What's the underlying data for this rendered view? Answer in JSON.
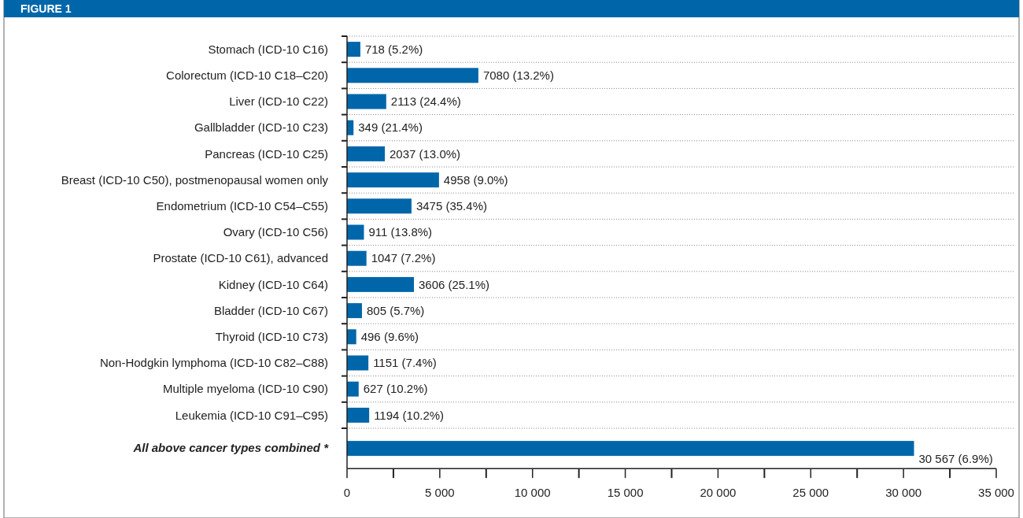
{
  "chart_data": {
    "type": "bar",
    "orientation": "horizontal",
    "title": "FIGURE 1",
    "categories": [
      "Stomach (ICD-10 C16)",
      "Colorectum (ICD-10 C18–C20)",
      "Liver (ICD-10 C22)",
      "Gallbladder (ICD-10 C23)",
      "Pancreas (ICD-10 C25)",
      "Breast (ICD-10 C50), postmenopausal women only",
      "Endometrium (ICD-10 C54–C55)",
      "Ovary (ICD-10 C56)",
      "Prostate (ICD-10 C61), advanced",
      "Kidney (ICD-10 C64)",
      "Bladder (ICD-10 C67)",
      "Thyroid (ICD-10 C73)",
      "Non-Hodgkin lymphoma (ICD-10 C82–C88)",
      "Multiple myeloma (ICD-10 C90)",
      "Leukemia (ICD-10 C91–C95)",
      "All above cancer types combined *"
    ],
    "values": [
      718,
      7080,
      2113,
      349,
      2037,
      4958,
      3475,
      911,
      1047,
      3606,
      805,
      496,
      1151,
      627,
      1194,
      30567
    ],
    "value_labels": [
      "718 (5.2%)",
      "7080 (13.2%)",
      "2113 (24.4%)",
      "349 (21.4%)",
      "2037 (13.0%)",
      "4958 (9.0%)",
      "3475 (35.4%)",
      "911 (13.8%)",
      "1047 (7.2%)",
      "3606 (25.1%)",
      "805 (5.7%)",
      "496 (9.6%)",
      "1151 (7.4%)",
      "627 (10.2%)",
      "1194 (10.2%)",
      "30 567 (6.9%)"
    ],
    "color": "#0066aa",
    "xlim": [
      0,
      35000
    ],
    "xticks": [
      0,
      {
        "value": 2500,
        "label": null
      },
      {
        "value": 5000,
        "label": "5 000"
      },
      {
        "value": 7500,
        "label": null
      },
      {
        "value": 10000,
        "label": "10 000"
      },
      {
        "value": 12500,
        "label": null
      },
      {
        "value": 15000,
        "label": "15 000"
      },
      {
        "value": 17500,
        "label": null
      },
      {
        "value": 20000,
        "label": "20 000"
      },
      {
        "value": 22500,
        "label": null
      },
      {
        "value": 25000,
        "label": "25 000"
      },
      {
        "value": 27500,
        "label": null
      },
      {
        "value": 30000,
        "label": "30 000"
      },
      {
        "value": 32500,
        "label": null
      },
      {
        "value": 35000,
        "label": "35 000"
      }
    ],
    "grid": "y"
  }
}
